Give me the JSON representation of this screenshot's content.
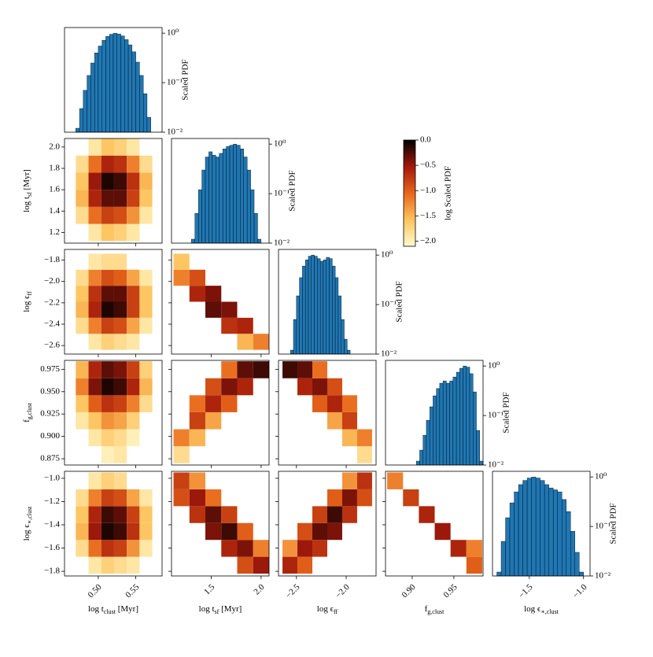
{
  "chart_data": {
    "type": "corner",
    "variables": [
      {
        "label": [
          {
            "text": "log t"
          },
          {
            "text": "clust",
            "sub": true
          },
          {
            "text": " [Myr]"
          }
        ],
        "lim": [
          0.455,
          0.585
        ],
        "ticks": [
          {
            "value": 0.5,
            "label": "0.50"
          },
          {
            "value": 0.55,
            "label": "0.55"
          }
        ],
        "bins": [
          0.47,
          0.487,
          0.504,
          0.521,
          0.538,
          0.555,
          0.572
        ]
      },
      {
        "label": [
          {
            "text": "log t"
          },
          {
            "text": "sf",
            "sub": true
          },
          {
            "text": " [Myr]"
          }
        ],
        "lim": [
          1.1,
          2.08
        ],
        "ticks": [
          1.2,
          1.4,
          1.5,
          1.6,
          1.8,
          {
            "value": 2,
            "label": "2.0"
          }
        ],
        "xticks": [
          1.5,
          {
            "value": 2,
            "label": "2.0"
          }
        ],
        "yticks": [
          1.2,
          1.4,
          1.6,
          1.8,
          {
            "value": 2,
            "label": "2.0"
          }
        ],
        "bins": [
          1.12,
          1.28,
          1.44,
          1.6,
          1.76,
          1.92,
          2.08
        ]
      },
      {
        "label": [
          {
            "text": "log ϵ"
          },
          {
            "text": "ff",
            "sub": true
          }
        ],
        "lim": [
          -2.68,
          -1.7
        ],
        "xticks": [
          {
            "value": -2.5,
            "label": "−2.5"
          },
          {
            "value": -2,
            "label": "−2.0"
          }
        ],
        "yticks": [
          {
            "value": -1.8,
            "label": "−1.8"
          },
          {
            "value": -2,
            "label": "−2.0"
          },
          {
            "value": -2.2,
            "label": "−2.2"
          },
          {
            "value": -2.4,
            "label": "−2.4"
          },
          {
            "value": -2.6,
            "label": "−2.6"
          }
        ],
        "bins": [
          -2.64,
          -2.49,
          -2.34,
          -2.19,
          -2.04,
          -1.89,
          -1.74
        ]
      },
      {
        "label": [
          {
            "text": "f"
          },
          {
            "text": "g,clust",
            "sub": true
          }
        ],
        "lim": [
          0.868,
          0.985
        ],
        "xticks": [
          {
            "value": 0.9,
            "label": "0.90"
          },
          {
            "value": 0.95,
            "label": "0.95"
          }
        ],
        "yticks": [
          0.875,
          {
            "value": 0.9,
            "label": "0.900"
          },
          0.925,
          {
            "value": 0.95,
            "label": "0.950"
          },
          0.975
        ],
        "bins": [
          0.87,
          0.889,
          0.908,
          0.927,
          0.946,
          0.965,
          0.984
        ]
      },
      {
        "label": [
          {
            "text": "log ϵ"
          },
          {
            "text": "∗,clust",
            "sub": true
          }
        ],
        "lim": [
          -1.84,
          -0.94
        ],
        "xticks": [
          {
            "value": -1.5,
            "label": "−1.5"
          },
          {
            "value": -1,
            "label": "−1.0"
          }
        ],
        "yticks": [
          {
            "value": -1,
            "label": "−1.0"
          },
          {
            "value": -1.2,
            "label": "−1.2"
          },
          {
            "value": -1.4,
            "label": "−1.4"
          },
          {
            "value": -1.6,
            "label": "−1.6"
          },
          {
            "value": -1.8,
            "label": "−1.8"
          }
        ],
        "bins": [
          -1.82,
          -1.675,
          -1.53,
          -1.385,
          -1.24,
          -1.095,
          -0.95
        ]
      }
    ],
    "hist_color": "#1f77b4",
    "hist_log_y": true,
    "hist_ylim": [
      0.01,
      1.3
    ],
    "hist_yticks": [
      {
        "value": 0.01,
        "label": "10⁻²"
      },
      {
        "value": 0.1,
        "label": "10⁻¹"
      },
      {
        "value": 1,
        "label": "10⁰"
      }
    ],
    "hist_ylabel": "Scaled PDF",
    "histograms": [
      {
        "var": 0,
        "bins": [
          0.47,
          0.475,
          0.48,
          0.485,
          0.49,
          0.495,
          0.5,
          0.505,
          0.51,
          0.515,
          0.52,
          0.525,
          0.53,
          0.535,
          0.54,
          0.545,
          0.55,
          0.555,
          0.56,
          0.565,
          0.57
        ],
        "values": [
          0.012,
          0.03,
          0.07,
          0.14,
          0.25,
          0.4,
          0.55,
          0.72,
          0.86,
          0.95,
          1.0,
          0.96,
          0.88,
          0.74,
          0.58,
          0.42,
          0.26,
          0.14,
          0.06,
          0.02
        ]
      },
      {
        "var": 1,
        "bins": [
          1.3,
          1.335,
          1.37,
          1.405,
          1.44,
          1.475,
          1.51,
          1.545,
          1.58,
          1.615,
          1.65,
          1.685,
          1.72,
          1.755,
          1.79,
          1.825,
          1.86,
          1.895,
          1.93,
          1.965,
          2.0
        ],
        "values": [
          0.012,
          0.04,
          0.12,
          0.3,
          0.55,
          0.7,
          0.6,
          0.55,
          0.65,
          0.8,
          0.9,
          0.95,
          1.0,
          0.95,
          0.8,
          0.55,
          0.3,
          0.12,
          0.04,
          0.012
        ]
      },
      {
        "var": 2,
        "bins": [
          -2.56,
          -2.53,
          -2.5,
          -2.47,
          -2.44,
          -2.41,
          -2.38,
          -2.35,
          -2.32,
          -2.29,
          -2.26,
          -2.23,
          -2.2,
          -2.17,
          -2.14,
          -2.11,
          -2.08,
          -2.05,
          -2.02,
          -1.99,
          -1.96
        ],
        "values": [
          0.012,
          0.05,
          0.15,
          0.35,
          0.6,
          0.8,
          0.95,
          1.0,
          0.95,
          0.85,
          0.75,
          0.8,
          0.9,
          0.85,
          0.6,
          0.35,
          0.15,
          0.05,
          0.02,
          0.012
        ]
      },
      {
        "var": 3,
        "bins": [
          0.905,
          0.909,
          0.913,
          0.917,
          0.921,
          0.925,
          0.929,
          0.933,
          0.937,
          0.941,
          0.945,
          0.949,
          0.953,
          0.957,
          0.961,
          0.965,
          0.969,
          0.973,
          0.977,
          0.981,
          0.985
        ],
        "values": [
          0.012,
          0.02,
          0.04,
          0.08,
          0.15,
          0.25,
          0.35,
          0.45,
          0.5,
          0.45,
          0.5,
          0.6,
          0.75,
          0.9,
          1.0,
          0.95,
          0.7,
          0.3,
          0.05,
          0.012
        ]
      },
      {
        "var": 4,
        "bins": [
          -1.8,
          -1.76,
          -1.72,
          -1.68,
          -1.64,
          -1.6,
          -1.56,
          -1.52,
          -1.48,
          -1.44,
          -1.4,
          -1.36,
          -1.32,
          -1.28,
          -1.24,
          -1.2,
          -1.16,
          -1.12,
          -1.08,
          -1.04,
          -1.0
        ],
        "values": [
          0.012,
          0.05,
          0.15,
          0.3,
          0.5,
          0.7,
          0.85,
          0.95,
          1.0,
          0.95,
          0.85,
          0.7,
          0.6,
          0.55,
          0.5,
          0.35,
          0.2,
          0.08,
          0.03,
          0.012
        ]
      }
    ],
    "densities": [
      {
        "x": 0,
        "y": 1,
        "z": [
          [
            null,
            -1.9,
            -1.6,
            -1.7,
            -1.9,
            null
          ],
          [
            -1.8,
            -1.1,
            -0.8,
            -0.9,
            -1.3,
            -1.9
          ],
          [
            -1.5,
            -0.6,
            -0.3,
            -0.3,
            -0.8,
            -1.6
          ],
          [
            -1.6,
            -0.5,
            -0.1,
            -0.2,
            -0.7,
            -1.5
          ],
          [
            -1.8,
            -1.1,
            -0.6,
            -0.7,
            -1.2,
            -1.8
          ],
          [
            null,
            -1.9,
            -1.6,
            -1.7,
            -1.9,
            null
          ]
        ]
      },
      {
        "x": 0,
        "y": 2,
        "z": [
          [
            null,
            -1.9,
            -1.7,
            -1.8,
            -1.9,
            null
          ],
          [
            -1.8,
            -1.2,
            -0.8,
            -0.9,
            -1.4,
            -1.9
          ],
          [
            -1.5,
            -0.6,
            -0.1,
            -0.2,
            -0.8,
            -1.6
          ],
          [
            -1.6,
            -0.7,
            -0.3,
            -0.3,
            -0.8,
            -1.6
          ],
          [
            -1.8,
            -1.2,
            -0.9,
            -1.0,
            -1.4,
            -1.9
          ],
          [
            null,
            -1.9,
            -1.8,
            -1.8,
            null,
            null
          ]
        ]
      },
      {
        "x": 0,
        "y": 3,
        "z": [
          [
            null,
            null,
            -2.0,
            -1.9,
            null,
            null
          ],
          [
            null,
            -1.9,
            -1.7,
            -1.8,
            -2.0,
            null
          ],
          [
            -1.9,
            -1.6,
            -1.3,
            -1.4,
            -1.7,
            null
          ],
          [
            -1.6,
            -1.0,
            -0.7,
            -0.8,
            -1.2,
            -1.8
          ],
          [
            -1.2,
            -0.4,
            -0.1,
            -0.2,
            -0.6,
            -1.5
          ],
          [
            -1.5,
            -0.6,
            -0.3,
            -0.4,
            -0.8,
            -1.7
          ]
        ]
      },
      {
        "x": 0,
        "y": 4,
        "z": [
          [
            null,
            -1.9,
            -1.7,
            -1.8,
            -1.9,
            null
          ],
          [
            -1.8,
            -1.1,
            -0.7,
            -0.8,
            -1.3,
            -1.9
          ],
          [
            -1.5,
            -0.5,
            -0.1,
            -0.2,
            -0.7,
            -1.6
          ],
          [
            -1.6,
            -0.6,
            -0.2,
            -0.3,
            -0.8,
            -1.6
          ],
          [
            -1.8,
            -1.2,
            -0.8,
            -0.9,
            -1.4,
            -1.9
          ],
          [
            null,
            -1.9,
            -1.7,
            -1.8,
            null,
            null
          ]
        ]
      },
      {
        "x": 1,
        "y": 2,
        "z": [
          [
            null,
            null,
            null,
            null,
            -1.5,
            -1.2
          ],
          [
            null,
            null,
            null,
            -0.7,
            -0.6,
            null
          ],
          [
            null,
            null,
            -0.3,
            -0.4,
            null,
            null
          ],
          [
            null,
            -0.6,
            -0.4,
            null,
            null,
            null
          ],
          [
            -1.2,
            -0.9,
            null,
            null,
            null,
            null
          ],
          [
            -1.6,
            null,
            null,
            null,
            null,
            null
          ]
        ]
      },
      {
        "x": 1,
        "y": 3,
        "z": [
          [
            -1.8,
            null,
            null,
            null,
            null,
            null
          ],
          [
            -1.2,
            -1.5,
            null,
            null,
            null,
            null
          ],
          [
            null,
            -0.8,
            -1.4,
            null,
            null,
            null
          ],
          [
            null,
            -1.1,
            -0.6,
            -1.0,
            null,
            null
          ],
          [
            null,
            null,
            -0.9,
            -0.4,
            -0.6,
            null
          ],
          [
            null,
            null,
            null,
            -1.1,
            -0.3,
            -0.2
          ]
        ]
      },
      {
        "x": 2,
        "y": 3,
        "z": [
          [
            null,
            null,
            null,
            null,
            null,
            -1.8
          ],
          [
            null,
            null,
            null,
            null,
            -1.5,
            -1.2
          ],
          [
            null,
            null,
            null,
            -1.4,
            -0.8,
            null
          ],
          [
            null,
            null,
            -1.0,
            -0.6,
            -1.1,
            null
          ],
          [
            null,
            -0.6,
            -0.4,
            -0.9,
            null,
            null
          ],
          [
            -0.2,
            -0.3,
            -1.1,
            null,
            null,
            null
          ]
        ]
      },
      {
        "x": 1,
        "y": 4,
        "z": [
          [
            null,
            null,
            null,
            null,
            -0.9,
            -0.5
          ],
          [
            null,
            null,
            null,
            -0.6,
            -0.4,
            -1.2
          ],
          [
            null,
            null,
            -0.4,
            -0.2,
            -1.0,
            null
          ],
          [
            null,
            -0.7,
            -0.3,
            -0.8,
            null,
            null
          ],
          [
            -0.9,
            -0.5,
            -1.1,
            null,
            null,
            null
          ],
          [
            -0.8,
            -1.3,
            null,
            null,
            null,
            null
          ]
        ]
      },
      {
        "x": 2,
        "y": 4,
        "z": [
          [
            -0.6,
            -1.0,
            null,
            null,
            null,
            null
          ],
          [
            -1.3,
            -0.5,
            -0.7,
            null,
            null,
            null
          ],
          [
            null,
            -0.9,
            -0.3,
            -0.4,
            null,
            null
          ],
          [
            null,
            null,
            -0.8,
            -0.2,
            -0.7,
            null
          ],
          [
            null,
            null,
            null,
            -1.0,
            -0.4,
            -0.9
          ],
          [
            null,
            null,
            null,
            null,
            -1.3,
            -0.7
          ]
        ]
      },
      {
        "x": 3,
        "y": 4,
        "z": [
          [
            null,
            null,
            null,
            null,
            null,
            -1.0
          ],
          [
            null,
            null,
            null,
            null,
            -0.6,
            -1.2
          ],
          [
            null,
            null,
            null,
            -0.5,
            null,
            null
          ],
          [
            null,
            null,
            -0.6,
            null,
            null,
            null
          ],
          [
            null,
            -0.8,
            null,
            null,
            null,
            null
          ],
          [
            -1.2,
            null,
            null,
            null,
            null,
            null
          ]
        ]
      }
    ],
    "colorbar": {
      "label": "log Scaled PDF",
      "zlim": [
        -2.1,
        0
      ],
      "ticks": [
        {
          "value": 0,
          "label": "0.0"
        },
        {
          "value": -0.5,
          "label": "−0.5"
        },
        {
          "value": -1,
          "label": "−1.0"
        },
        {
          "value": -1.5,
          "label": "−1.5"
        },
        {
          "value": -2,
          "label": "−2.0"
        }
      ],
      "colors": [
        "#fffbd0",
        "#fdc35e",
        "#e8651a",
        "#a3190a",
        "#000000"
      ]
    }
  }
}
